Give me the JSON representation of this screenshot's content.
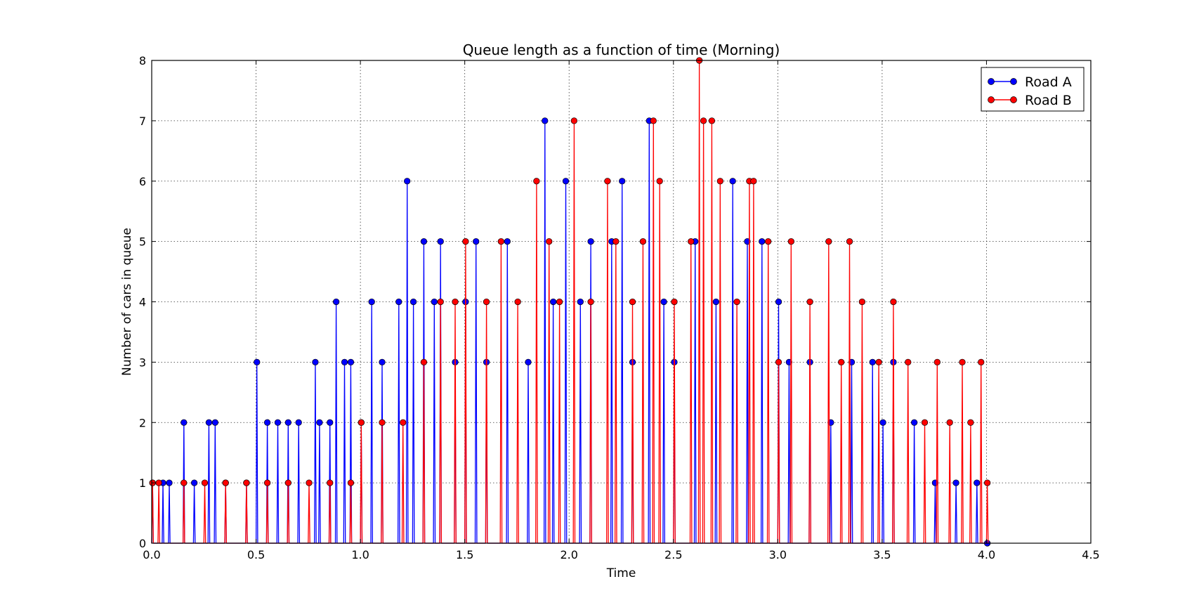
{
  "chart_data": {
    "type": "line",
    "title": "Queue length as a function of time (Morning)",
    "xlabel": "Time",
    "ylabel": "Number of cars in queue",
    "xlim": [
      0.0,
      4.5
    ],
    "ylim": [
      0,
      8
    ],
    "xticks": [
      "0.0",
      "0.5",
      "1.0",
      "1.5",
      "2.0",
      "2.5",
      "3.0",
      "3.5",
      "4.0",
      "4.5"
    ],
    "yticks": [
      "0",
      "1",
      "2",
      "3",
      "4",
      "5",
      "6",
      "7",
      "8"
    ],
    "grid": true,
    "legend_position": "top-right",
    "series": [
      {
        "name": "Road A",
        "color": "#0000ff",
        "marker": "circle",
        "peaks": [
          [
            0.0,
            1
          ],
          [
            0.05,
            1
          ],
          [
            0.08,
            1
          ],
          [
            0.15,
            2
          ],
          [
            0.2,
            1
          ],
          [
            0.27,
            2
          ],
          [
            0.3,
            2
          ],
          [
            0.35,
            1
          ],
          [
            0.45,
            1
          ],
          [
            0.5,
            3
          ],
          [
            0.55,
            2
          ],
          [
            0.6,
            2
          ],
          [
            0.65,
            2
          ],
          [
            0.7,
            2
          ],
          [
            0.78,
            3
          ],
          [
            0.8,
            2
          ],
          [
            0.85,
            2
          ],
          [
            0.88,
            4
          ],
          [
            0.92,
            3
          ],
          [
            0.95,
            3
          ],
          [
            1.0,
            2
          ],
          [
            1.05,
            4
          ],
          [
            1.1,
            3
          ],
          [
            1.18,
            4
          ],
          [
            1.22,
            6
          ],
          [
            1.25,
            4
          ],
          [
            1.3,
            5
          ],
          [
            1.35,
            4
          ],
          [
            1.38,
            5
          ],
          [
            1.45,
            3
          ],
          [
            1.5,
            4
          ],
          [
            1.55,
            5
          ],
          [
            1.6,
            3
          ],
          [
            1.7,
            5
          ],
          [
            1.8,
            3
          ],
          [
            1.88,
            7
          ],
          [
            1.92,
            4
          ],
          [
            1.98,
            6
          ],
          [
            2.05,
            4
          ],
          [
            2.1,
            5
          ],
          [
            2.2,
            5
          ],
          [
            2.25,
            6
          ],
          [
            2.3,
            3
          ],
          [
            2.38,
            7
          ],
          [
            2.45,
            4
          ],
          [
            2.5,
            3
          ],
          [
            2.6,
            5
          ],
          [
            2.7,
            4
          ],
          [
            2.78,
            6
          ],
          [
            2.85,
            5
          ],
          [
            2.92,
            5
          ],
          [
            3.0,
            4
          ],
          [
            3.05,
            3
          ],
          [
            3.15,
            3
          ],
          [
            3.25,
            2
          ],
          [
            3.35,
            3
          ],
          [
            3.45,
            3
          ],
          [
            3.5,
            2
          ],
          [
            3.55,
            3
          ],
          [
            3.65,
            2
          ],
          [
            3.75,
            1
          ],
          [
            3.85,
            1
          ],
          [
            3.95,
            1
          ],
          [
            4.0,
            0
          ]
        ]
      },
      {
        "name": "Road B",
        "color": "#ff0000",
        "marker": "circle",
        "peaks": [
          [
            0.0,
            1
          ],
          [
            0.03,
            1
          ],
          [
            0.15,
            1
          ],
          [
            0.25,
            1
          ],
          [
            0.35,
            1
          ],
          [
            0.45,
            1
          ],
          [
            0.55,
            1
          ],
          [
            0.65,
            1
          ],
          [
            0.75,
            1
          ],
          [
            0.85,
            1
          ],
          [
            0.95,
            1
          ],
          [
            1.0,
            2
          ],
          [
            1.1,
            2
          ],
          [
            1.2,
            2
          ],
          [
            1.3,
            3
          ],
          [
            1.38,
            4
          ],
          [
            1.45,
            4
          ],
          [
            1.5,
            5
          ],
          [
            1.6,
            4
          ],
          [
            1.67,
            5
          ],
          [
            1.75,
            4
          ],
          [
            1.84,
            6
          ],
          [
            1.9,
            5
          ],
          [
            1.95,
            4
          ],
          [
            2.02,
            7
          ],
          [
            2.1,
            4
          ],
          [
            2.18,
            6
          ],
          [
            2.22,
            5
          ],
          [
            2.3,
            4
          ],
          [
            2.35,
            5
          ],
          [
            2.4,
            7
          ],
          [
            2.43,
            6
          ],
          [
            2.5,
            4
          ],
          [
            2.58,
            5
          ],
          [
            2.62,
            8
          ],
          [
            2.64,
            7
          ],
          [
            2.68,
            7
          ],
          [
            2.72,
            6
          ],
          [
            2.8,
            4
          ],
          [
            2.86,
            6
          ],
          [
            2.88,
            6
          ],
          [
            2.95,
            5
          ],
          [
            3.0,
            3
          ],
          [
            3.06,
            5
          ],
          [
            3.15,
            4
          ],
          [
            3.24,
            5
          ],
          [
            3.3,
            3
          ],
          [
            3.34,
            5
          ],
          [
            3.4,
            4
          ],
          [
            3.48,
            3
          ],
          [
            3.55,
            4
          ],
          [
            3.62,
            3
          ],
          [
            3.7,
            2
          ],
          [
            3.76,
            3
          ],
          [
            3.82,
            2
          ],
          [
            3.88,
            3
          ],
          [
            3.92,
            2
          ],
          [
            3.97,
            3
          ],
          [
            4.0,
            1
          ]
        ]
      }
    ]
  }
}
